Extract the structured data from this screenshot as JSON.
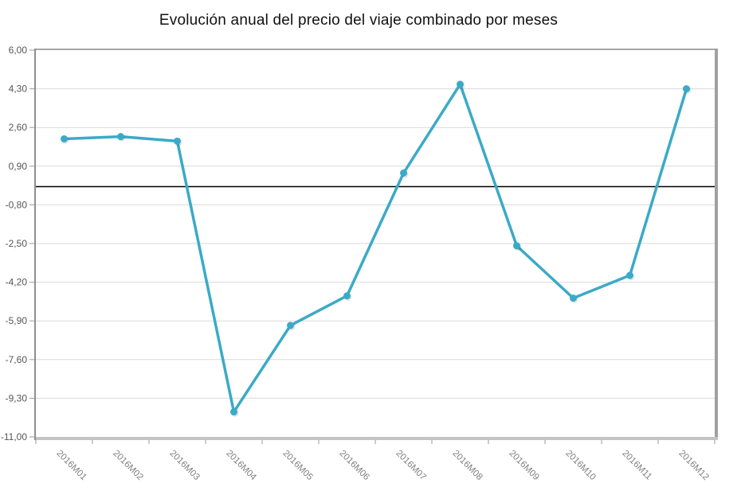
{
  "chart_data": {
    "type": "line",
    "title": "Evolución anual del precio del viaje combinado por meses",
    "categories": [
      "2016M01",
      "2016M02",
      "2016M03",
      "2016M04",
      "2016M05",
      "2016M06",
      "2016M07",
      "2016M08",
      "2016M09",
      "2016M10",
      "2016M11",
      "2016M12"
    ],
    "values": [
      2.1,
      2.2,
      2.0,
      -9.9,
      -6.1,
      -4.8,
      0.6,
      4.5,
      -2.6,
      -4.9,
      -3.9,
      4.3
    ],
    "y_ticks": [
      "6,00",
      "4,30",
      "2,60",
      "0,90",
      "-0,80",
      "-2,50",
      "-4,20",
      "-5,90",
      "-7,60",
      "-9,30",
      "-11,00"
    ],
    "y_tick_values": [
      6.0,
      4.3,
      2.6,
      0.9,
      -0.8,
      -2.5,
      -4.2,
      -5.9,
      -7.6,
      -9.3,
      -11.0
    ],
    "ylim": [
      -11.0,
      6.0
    ],
    "y_step": 1.7,
    "xlabel": "",
    "ylabel": "",
    "grid": true,
    "legend": "none",
    "zero_line": true,
    "line_color": "#3BAAC6",
    "marker_color": "#3BAAC6",
    "grid_color": "#d9d9d9",
    "zero_line_color": "#000000",
    "y_label_color": "#555555",
    "x_label_color": "#808080",
    "frame_color": "#a6a6a6",
    "background_color": "#ffffff"
  }
}
